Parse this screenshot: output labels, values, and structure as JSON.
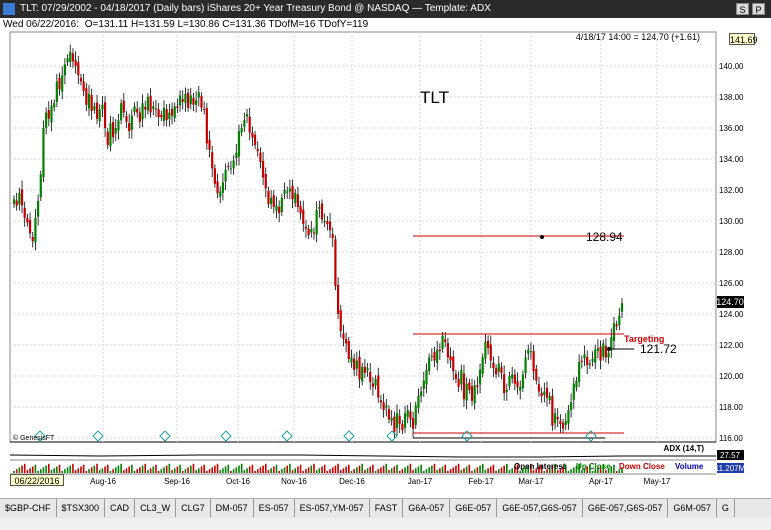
{
  "window": {
    "title": "TLT:  07/29/2002 - 04/18/2017  (Daily bars)  iShares 20+ Year Treasury Bond @ NASDAQ  —  Template: ADX",
    "btn_s": "S",
    "btn_p": "P"
  },
  "info": {
    "date": "Wed  06/22/2016:",
    "ohlc": "O=131.11  H=131.59  L=130.86  C=131.36  TDofM=16  TDofY=119"
  },
  "header_readout": "4/18/17 14:00 = 124.70 (+1.61)",
  "corner_price": "141.69",
  "symbol_label": "TLT",
  "copyright": "© GenesisFT",
  "annotations": {
    "level_upper": "128.94",
    "level_target": "121.72",
    "targeting": "Targeting",
    "last_price": "124.70"
  },
  "adx_label": "ADX (14,T)",
  "adx_value": "27.57",
  "volume_value": "11.207M",
  "legend": {
    "oi": "Open Interest",
    "up": "Up Close",
    "down": "Down Close",
    "vol": "Volume"
  },
  "colors": {
    "up": "#008000",
    "down": "#c00000",
    "level": "#cc0000",
    "diamond": "#20a0a0"
  },
  "date_box": "06/22/2016",
  "chart_data": {
    "type": "candlestick",
    "ylim": [
      115,
      141.69
    ],
    "y_ticks": [
      "140.00",
      "138.00",
      "136.00",
      "134.00",
      "132.00",
      "130.00",
      "128.00",
      "126.00",
      "124.00",
      "122.00",
      "120.00",
      "118.00",
      "116.00"
    ],
    "x_ticks": [
      "Aug-16",
      "Sep-16",
      "Oct-16",
      "Nov-16",
      "Dec-16",
      "Jan-17",
      "Feb-17",
      "Mar-17",
      "Apr-17",
      "May-17"
    ],
    "closes": [
      131.4,
      131.0,
      131.8,
      131.0,
      130.2,
      129.9,
      129.2,
      128.7,
      130.2,
      131.3,
      133.0,
      136.0,
      137.0,
      136.6,
      137.4,
      137.6,
      139.0,
      138.5,
      139.4,
      140.1,
      140.5,
      140.9,
      140.3,
      140.0,
      139.4,
      139.0,
      138.4,
      137.5,
      138.2,
      137.1,
      137.4,
      136.6,
      137.2,
      137.5,
      136.0,
      134.9,
      136.3,
      135.4,
      136.0,
      136.5,
      137.6,
      137.0,
      136.4,
      135.8,
      136.8,
      137.4,
      137.0,
      136.4,
      137.6,
      137.2,
      138.0,
      137.0,
      137.4,
      137.2,
      136.7,
      136.7,
      137.3,
      136.5,
      137.0,
      136.8,
      137.4,
      137.3,
      138.1,
      137.7,
      138.2,
      137.3,
      138.1,
      137.5,
      137.8,
      138.3,
      137.3,
      137.2,
      135.0,
      134.6,
      133.4,
      132.4,
      131.8,
      131.9,
      132.5,
      133.3,
      133.5,
      133.4,
      133.9,
      134.4,
      135.8,
      136.0,
      136.5,
      136.9,
      135.7,
      135.4,
      134.9,
      134.5,
      133.8,
      132.8,
      132.1,
      131.1,
      131.5,
      130.9,
      131.0,
      130.5,
      131.5,
      132.0,
      131.9,
      132.1,
      131.4,
      131.8,
      130.9,
      130.5,
      129.8,
      129.5,
      129.1,
      129.5,
      129.2,
      130.7,
      130.9,
      130.1,
      130.0,
      129.8,
      129.4,
      128.9,
      125.8,
      124.0,
      122.9,
      122.4,
      122.1,
      121.1,
      121.2,
      120.4,
      121.0,
      119.8,
      120.6,
      120.2,
      120.5,
      119.6,
      119.3,
      119.8,
      118.6,
      118.3,
      117.8,
      118.1,
      117.2,
      117.3,
      116.4,
      117.6,
      116.9,
      116.5,
      117.6,
      117.8,
      117.2,
      116.6,
      118.1,
      118.7,
      119.0,
      119.7,
      120.4,
      121.2,
      121.3,
      121.0,
      121.7,
      121.6,
      122.6,
      122.2,
      121.2,
      121.0,
      120.3,
      119.8,
      119.3,
      120.4,
      118.5,
      119.5,
      119.1,
      118.4,
      119.4,
      119.3,
      120.4,
      121.2,
      122.2,
      121.8,
      121.0,
      120.5,
      120.1,
      120.8,
      120.2,
      118.9,
      119.1,
      120.0,
      120.1,
      119.5,
      119.3,
      119.3,
      120.1,
      121.2,
      121.7,
      121.6,
      120.3,
      119.7,
      119.0,
      118.7,
      119.0,
      118.6,
      118.7,
      116.8,
      117.6,
      117.2,
      116.9,
      116.6,
      117.1,
      117.8,
      118.3,
      119.5,
      119.7,
      120.9,
      120.9,
      121.4,
      120.7,
      120.8,
      121.1,
      121.7,
      121.8,
      121.0,
      122.1,
      121.2,
      121.5,
      122.5,
      123.4,
      123.2,
      123.9,
      124.7
    ]
  }
}
